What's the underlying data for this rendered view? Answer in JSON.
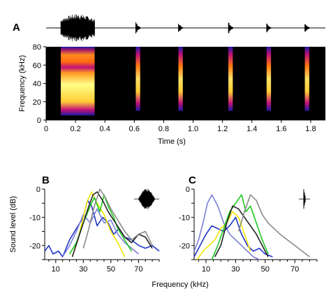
{
  "chart_data": [
    {
      "panel": "A",
      "type": "heatmap",
      "xlabel": "Time (s)",
      "ylabel": "Frequency (kHz)",
      "xlim": [
        0,
        1.9
      ],
      "ylim": [
        0,
        80
      ],
      "x_ticks": [
        "0",
        "0.2",
        "0.4",
        "0.6",
        "0.8",
        "1.0",
        "1.2",
        "1.4",
        "1.6",
        "1.8"
      ],
      "y_ticks": [
        "0",
        "20",
        "40",
        "60",
        "80"
      ],
      "colors": {
        "background": "#000000",
        "low": "#1a1aa0",
        "mid": "#c0107a",
        "high": "#ff8a00",
        "peak": "#ffff66"
      },
      "calls": [
        {
          "start": 0.1,
          "end": 0.33,
          "fmin": 5,
          "fmax": 80,
          "kind": "broadband",
          "envelope": 1.0
        },
        {
          "start": 0.61,
          "end": 0.64,
          "fmin": 10,
          "fmax": 80,
          "kind": "click",
          "envelope": 0.5
        },
        {
          "start": 0.9,
          "end": 0.93,
          "fmin": 10,
          "fmax": 80,
          "kind": "click",
          "envelope": 0.45
        },
        {
          "start": 1.24,
          "end": 1.27,
          "fmin": 10,
          "fmax": 80,
          "kind": "click",
          "envelope": 0.55
        },
        {
          "start": 1.5,
          "end": 1.53,
          "fmin": 10,
          "fmax": 80,
          "kind": "click",
          "envelope": 0.4
        },
        {
          "start": 1.76,
          "end": 1.79,
          "fmin": 10,
          "fmax": 80,
          "kind": "click",
          "envelope": 0.4
        }
      ]
    },
    {
      "panel": "B",
      "type": "line",
      "xlabel": "",
      "ylabel": "Sound level (dB)",
      "xlim": [
        2,
        85
      ],
      "ylim": [
        -25,
        0
      ],
      "x_ticks": [
        "10",
        "30",
        "50",
        "70"
      ],
      "y_ticks": [
        "0",
        "-10",
        "-20"
      ],
      "inset": "broadband",
      "series": [
        {
          "color": "#1f36c8",
          "x": [
            2,
            5,
            8,
            12,
            15,
            20,
            25,
            30,
            33,
            36,
            40,
            44,
            48,
            52,
            56,
            60,
            65,
            70,
            75,
            80,
            85
          ],
          "y": [
            -22,
            -20,
            -23,
            -22,
            -24,
            -18,
            -14,
            -10,
            -4,
            -6,
            -13,
            -10,
            -12,
            -16,
            -14,
            -17,
            -18,
            -20,
            -21,
            -20,
            -22
          ]
        },
        {
          "color": "#7b7fd6",
          "x": [
            15,
            20,
            25,
            30,
            35,
            40,
            45,
            50,
            55,
            60,
            65,
            70
          ],
          "y": [
            -24,
            -20,
            -15,
            -9,
            -12,
            -7,
            -12,
            -11,
            -16,
            -19,
            -21,
            -23
          ]
        },
        {
          "color": "#f2e600",
          "x": [
            22,
            26,
            30,
            33,
            36,
            40,
            45,
            50,
            55,
            60
          ],
          "y": [
            -24,
            -18,
            -10,
            -4,
            -1,
            -5,
            -9,
            -15,
            -19,
            -24
          ]
        },
        {
          "color": "#1ec81e",
          "x": [
            20,
            25,
            30,
            35,
            38,
            42,
            45,
            48,
            52,
            55,
            60,
            65
          ],
          "y": [
            -23,
            -19,
            -12,
            -6,
            -3,
            -8,
            -2,
            -6,
            -10,
            -14,
            -18,
            -22
          ]
        },
        {
          "color": "#222222",
          "x": [
            22,
            26,
            30,
            34,
            37,
            40,
            44,
            48,
            52,
            56,
            60,
            65,
            70,
            75,
            80
          ],
          "y": [
            -24,
            -18,
            -12,
            -6,
            -2,
            -1,
            -4,
            -8,
            -11,
            -14,
            -17,
            -19,
            -16,
            -17,
            -21
          ]
        },
        {
          "color": "#8a8a8a",
          "x": [
            30,
            34,
            38,
            42,
            46,
            50,
            55,
            60,
            65,
            70,
            75,
            80
          ],
          "y": [
            -21,
            -14,
            -6,
            0,
            -3,
            -7,
            -11,
            -15,
            -18,
            -16,
            -15,
            -20
          ]
        }
      ]
    },
    {
      "panel": "C",
      "type": "line",
      "xlabel": "",
      "ylabel": "",
      "xlim": [
        2,
        85
      ],
      "ylim": [
        -25,
        0
      ],
      "x_ticks": [
        "10",
        "30",
        "50",
        "70"
      ],
      "y_ticks": [
        "0",
        "-10",
        "-20"
      ],
      "inset": "click",
      "series": [
        {
          "color": "#7b7fd6",
          "x": [
            2,
            5,
            8,
            11,
            14,
            18,
            22,
            26,
            30,
            34,
            38,
            42,
            46
          ],
          "y": [
            -22,
            -18,
            -12,
            -5,
            -2,
            -6,
            -12,
            -16,
            -18,
            -20,
            -22,
            -24,
            -25
          ]
        },
        {
          "color": "#1f36c8",
          "x": [
            2,
            6,
            10,
            14,
            18,
            22,
            26,
            30,
            34,
            38,
            42,
            46,
            50,
            55
          ],
          "y": [
            -24,
            -20,
            -16,
            -13,
            -14,
            -15,
            -13,
            -10,
            -16,
            -20,
            -22,
            -21,
            -23,
            -24
          ]
        },
        {
          "color": "#f2e600",
          "x": [
            4,
            8,
            12,
            16,
            20,
            24,
            28,
            32,
            36,
            40
          ],
          "y": [
            -25,
            -22,
            -20,
            -18,
            -14,
            -12,
            -8,
            -10,
            -16,
            -22
          ]
        },
        {
          "color": "#1ec81e",
          "x": [
            14,
            18,
            22,
            26,
            30,
            34,
            37,
            40,
            44,
            48,
            52
          ],
          "y": [
            -25,
            -20,
            -14,
            -8,
            -5,
            -2,
            -8,
            -6,
            -12,
            -18,
            -23
          ]
        },
        {
          "color": "#222222",
          "x": [
            16,
            20,
            24,
            28,
            32,
            36,
            40,
            44,
            48,
            52
          ],
          "y": [
            -24,
            -20,
            -12,
            -6,
            -7,
            -10,
            -13,
            -16,
            -20,
            -24
          ]
        },
        {
          "color": "#8a8a8a",
          "x": [
            32,
            36,
            40,
            44,
            48,
            52,
            56,
            60,
            65,
            70,
            75,
            80
          ],
          "y": [
            -15,
            -8,
            -2,
            -4,
            -9,
            -12,
            -14,
            -16,
            -18,
            -20,
            -22,
            -24
          ]
        }
      ]
    }
  ],
  "figure": {
    "panel_labels": [
      "A",
      "B",
      "C"
    ],
    "shared_xlabel": "Frequency (kHz)"
  }
}
